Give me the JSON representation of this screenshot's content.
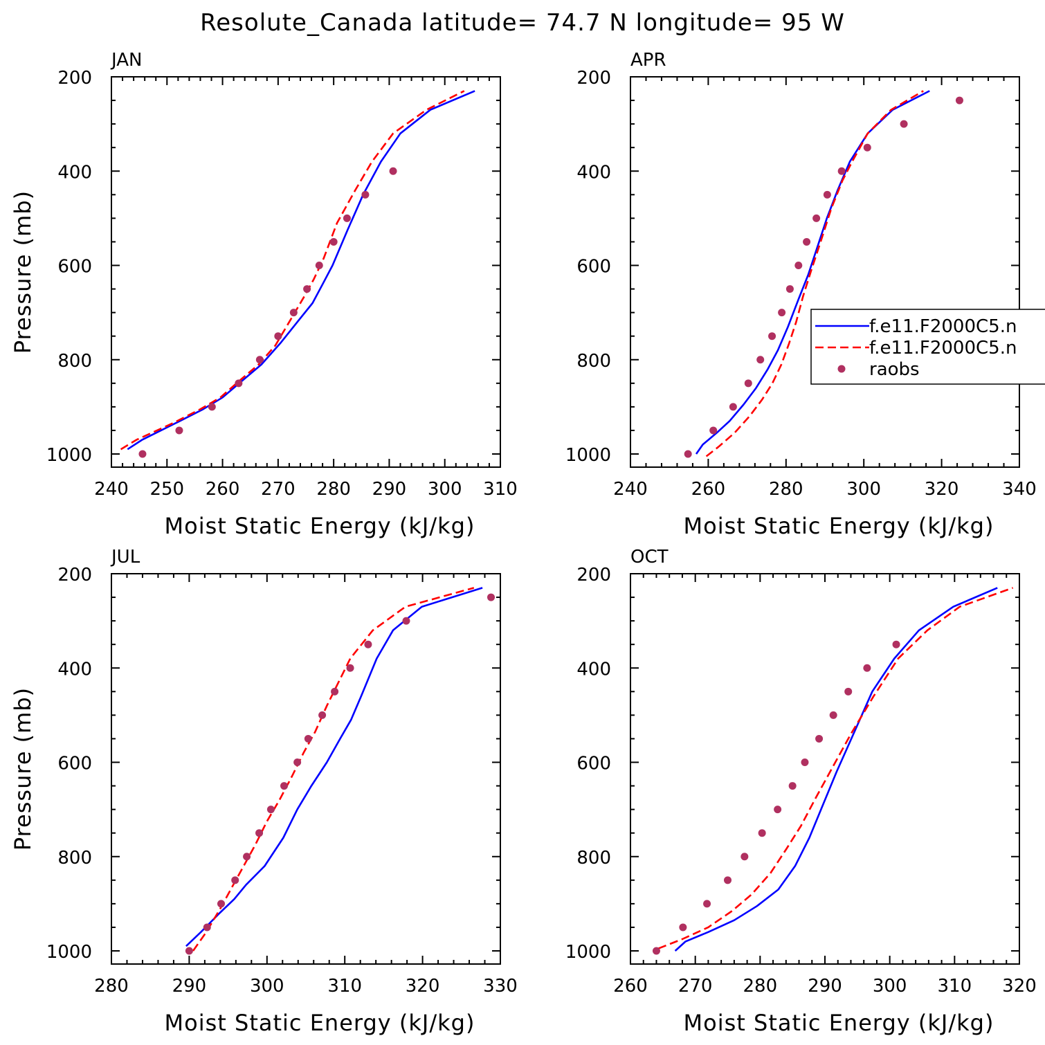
{
  "figure": {
    "title": "Resolute_Canada  latitude= 74.7 N longitude= 95 W"
  },
  "colors": {
    "model_1": "#0000ff",
    "model_2": "#ff0000",
    "raobs": "#b03060",
    "axes": "#000000"
  },
  "legend": {
    "panel": "APR",
    "placement": "center-right, clipped by figure edge",
    "entries": [
      {
        "label": "f.e11.F2000C5.n",
        "style": "solid",
        "color": "#0000ff"
      },
      {
        "label": "f.e11.F2000C5.n",
        "style": "dashed",
        "color": "#ff0000"
      },
      {
        "label": "raobs",
        "style": "marker",
        "color": "#b03060"
      }
    ]
  },
  "chart_data": [
    {
      "type": "line",
      "title": "JAN",
      "xlabel": "Moist Static Energy (kJ/kg)",
      "ylabel": "Pressure (mb)",
      "xlim": [
        240,
        310
      ],
      "ylim": [
        1000,
        200
      ],
      "y_inverted": true,
      "xticks": [
        240,
        250,
        260,
        270,
        280,
        290,
        300,
        310
      ],
      "yticks": [
        200,
        400,
        600,
        800,
        1000
      ],
      "series": [
        {
          "style": "solid",
          "color": "#0000ff",
          "x": [
            242.9,
            245.5,
            252.0,
            256.5,
            260.0,
            264.0,
            267.0,
            270.4,
            273.8,
            276.2,
            278.0,
            279.8,
            282.5,
            285.3,
            288.5,
            292.0,
            297.4,
            305.4
          ],
          "y": [
            990,
            970,
            932,
            905,
            880,
            840,
            810,
            765,
            715,
            680,
            640,
            600,
            525,
            450,
            380,
            320,
            270,
            230
          ]
        },
        {
          "style": "dashed",
          "color": "#ff0000",
          "x": [
            241.7,
            244.5,
            251.0,
            256.0,
            259.6,
            263.5,
            266.5,
            269.5,
            272.0,
            274.5,
            276.4,
            278.2,
            280.6,
            283.9,
            286.9,
            290.7,
            296.7,
            303.5
          ],
          "y": [
            990,
            970,
            935,
            905,
            880,
            840,
            810,
            770,
            720,
            670,
            630,
            585,
            510,
            440,
            380,
            320,
            270,
            230
          ]
        },
        {
          "style": "marker",
          "color": "#b03060",
          "x": [
            245.6,
            252.2,
            258.1,
            262.9,
            266.7,
            270.0,
            272.8,
            275.2,
            277.4,
            280.0,
            282.4,
            285.7,
            290.7
          ],
          "y": [
            1000,
            950,
            900,
            850,
            800,
            750,
            700,
            650,
            600,
            550,
            500,
            450,
            400
          ]
        }
      ]
    },
    {
      "type": "line",
      "title": "APR",
      "xlabel": "Moist Static Energy (kJ/kg)",
      "ylabel": "",
      "xlim": [
        240,
        340
      ],
      "ylim": [
        1000,
        200
      ],
      "y_inverted": true,
      "xticks": [
        240,
        260,
        280,
        300,
        320,
        340
      ],
      "yticks": [
        200,
        400,
        600,
        800,
        1000
      ],
      "series": [
        {
          "style": "solid",
          "color": "#0000ff",
          "x": [
            256.9,
            258.6,
            262.2,
            265.5,
            269.1,
            272.3,
            275.3,
            277.9,
            280.5,
            283.3,
            285.7,
            288.1,
            290.5,
            293.3,
            296.4,
            301.0,
            307.4,
            316.9
          ],
          "y": [
            1000,
            980,
            955,
            930,
            895,
            860,
            820,
            780,
            730,
            670,
            620,
            560,
            500,
            440,
            380,
            320,
            270,
            230
          ]
        },
        {
          "style": "dashed",
          "color": "#ff0000",
          "x": [
            259.5,
            262.6,
            266.8,
            270.6,
            273.8,
            276.5,
            278.8,
            280.8,
            282.6,
            284.4,
            286.5,
            288.9,
            291.6,
            294.5,
            297.0,
            301.0,
            307.0,
            315.3
          ],
          "y": [
            1005,
            985,
            955,
            920,
            885,
            850,
            810,
            765,
            720,
            665,
            610,
            550,
            480,
            420,
            380,
            320,
            270,
            230
          ]
        },
        {
          "style": "marker",
          "color": "#b03060",
          "x": [
            254.8,
            261.3,
            266.4,
            270.3,
            273.4,
            276.4,
            278.9,
            281.0,
            283.2,
            285.3,
            287.8,
            290.6,
            294.3,
            300.9,
            310.3,
            324.6
          ],
          "y": [
            1000,
            950,
            900,
            850,
            800,
            750,
            700,
            650,
            600,
            550,
            500,
            450,
            400,
            350,
            300,
            250
          ]
        }
      ]
    },
    {
      "type": "line",
      "title": "JUL",
      "xlabel": "Moist Static Energy (kJ/kg)",
      "ylabel": "Pressure (mb)",
      "xlim": [
        280,
        330
      ],
      "ylim": [
        1000,
        200
      ],
      "y_inverted": true,
      "xticks": [
        280,
        290,
        300,
        310,
        320,
        330
      ],
      "yticks": [
        200,
        400,
        600,
        800,
        1000
      ],
      "series": [
        {
          "style": "solid",
          "color": "#0000ff",
          "x": [
            289.6,
            291.5,
            293.9,
            295.8,
            297.3,
            299.7,
            302.1,
            303.9,
            305.7,
            307.7,
            309.4,
            310.8,
            312.1,
            314.1,
            316.2,
            319.9,
            327.7
          ],
          "y": [
            990,
            960,
            920,
            890,
            860,
            820,
            760,
            700,
            650,
            600,
            550,
            510,
            460,
            380,
            320,
            270,
            230
          ]
        },
        {
          "style": "dashed",
          "color": "#ff0000",
          "x": [
            290.5,
            292.2,
            294.0,
            295.5,
            297.0,
            298.5,
            300.0,
            301.6,
            303.2,
            304.7,
            306.2,
            307.7,
            309.2,
            310.7,
            313.6,
            317.8,
            326.6
          ],
          "y": [
            1000,
            960,
            910,
            865,
            820,
            775,
            725,
            680,
            630,
            580,
            535,
            480,
            430,
            380,
            320,
            270,
            230
          ]
        },
        {
          "style": "marker",
          "color": "#b03060",
          "x": [
            290.0,
            292.3,
            294.1,
            295.9,
            297.4,
            299.0,
            300.5,
            302.2,
            303.9,
            305.3,
            307.1,
            308.7,
            310.7,
            313.0,
            317.9,
            328.8
          ],
          "y": [
            1000,
            950,
            900,
            850,
            800,
            750,
            700,
            650,
            600,
            550,
            500,
            450,
            400,
            350,
            300,
            250
          ]
        }
      ]
    },
    {
      "type": "line",
      "title": "OCT",
      "xlabel": "Moist Static Energy (kJ/kg)",
      "ylabel": "",
      "xlim": [
        260,
        320
      ],
      "ylim": [
        1000,
        200
      ],
      "y_inverted": true,
      "xticks": [
        260,
        270,
        280,
        290,
        300,
        310,
        320
      ],
      "yticks": [
        200,
        400,
        600,
        800,
        1000
      ],
      "series": [
        {
          "style": "solid",
          "color": "#0000ff",
          "x": [
            266.9,
            268.5,
            272.0,
            276.0,
            279.5,
            282.8,
            285.4,
            287.6,
            289.7,
            291.8,
            294.4,
            297.3,
            300.7,
            304.5,
            309.8,
            316.6
          ],
          "y": [
            1000,
            980,
            960,
            935,
            905,
            870,
            820,
            760,
            690,
            620,
            540,
            450,
            380,
            320,
            270,
            230
          ]
        },
        {
          "style": "dashed",
          "color": "#ff0000",
          "x": [
            264.3,
            268.0,
            272.0,
            275.7,
            278.7,
            281.6,
            284.0,
            286.3,
            288.6,
            291.0,
            294.0,
            297.5,
            301.3,
            305.8,
            310.8,
            319.0
          ],
          "y": [
            995,
            975,
            950,
            915,
            880,
            835,
            785,
            735,
            675,
            615,
            540,
            460,
            380,
            320,
            270,
            230
          ]
        },
        {
          "style": "marker",
          "color": "#b03060",
          "x": [
            264.0,
            268.1,
            271.8,
            275.0,
            277.6,
            280.3,
            282.7,
            285.0,
            286.9,
            289.1,
            291.3,
            293.6,
            296.5,
            301.0
          ],
          "y": [
            1000,
            950,
            900,
            850,
            800,
            750,
            700,
            650,
            600,
            550,
            500,
            450,
            400,
            350
          ]
        }
      ]
    }
  ]
}
